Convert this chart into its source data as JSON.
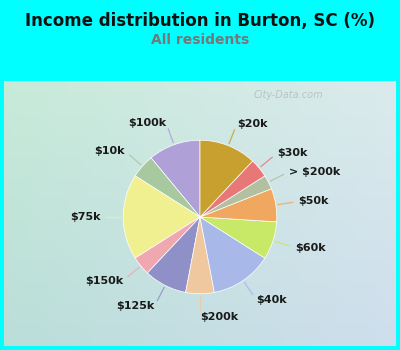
{
  "title": "Income distribution in Burton, SC (%)",
  "subtitle": "All residents",
  "title_color": "#1a1a2e",
  "subtitle_color": "#888888",
  "bg_top_color": "#00FFFF",
  "chart_bg_gradient_tl": "#c8ede0",
  "chart_bg_gradient_br": "#c8e8f0",
  "labels": [
    "$100k",
    "$10k",
    "$75k",
    "$150k",
    "$125k",
    "$200k",
    "$40k",
    "$60k",
    "$50k",
    "> $200k",
    "$30k",
    "$20k"
  ],
  "values": [
    11,
    5,
    18,
    4,
    9,
    6,
    13,
    8,
    7,
    3,
    4,
    12
  ],
  "colors": [
    "#b0a0d8",
    "#a8c8a0",
    "#f0f090",
    "#f0a8b0",
    "#9090c8",
    "#f0c8a0",
    "#a8b8e8",
    "#c8e868",
    "#f0a860",
    "#b0c0a0",
    "#e87878",
    "#c8a030"
  ],
  "startangle": 90,
  "title_fontsize": 12,
  "subtitle_fontsize": 10,
  "label_fontsize": 8,
  "watermark": "City-Data.com"
}
